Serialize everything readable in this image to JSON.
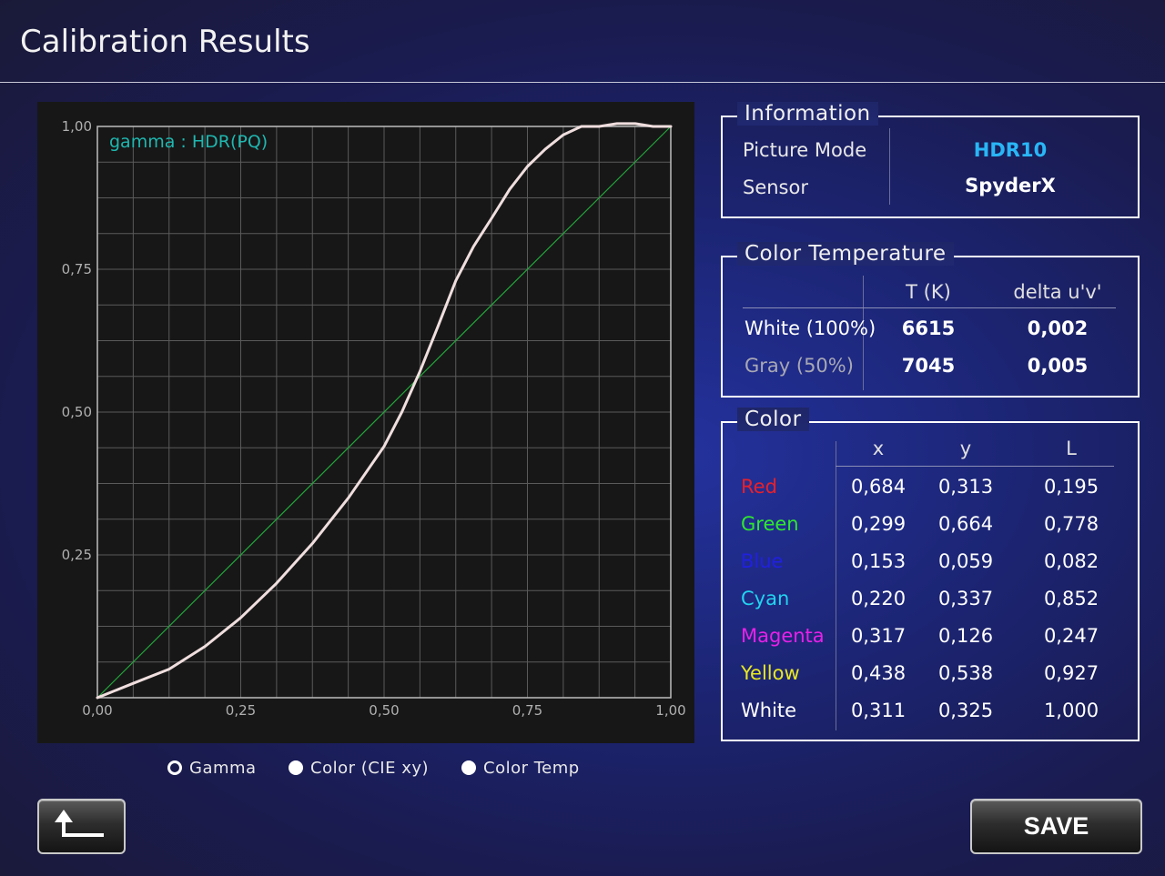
{
  "title": "Calibration Results",
  "chart_data": {
    "type": "line",
    "legend_text": "gamma :  HDR(PQ)",
    "x_ticks": [
      "0,00",
      "0,25",
      "0,50",
      "0,75",
      "1,00"
    ],
    "y_ticks": [
      "1,00",
      "0,75",
      "0,50",
      "0,25"
    ],
    "xlim": [
      0,
      1
    ],
    "ylim": [
      0,
      1
    ],
    "grid": true,
    "series": [
      {
        "color": "#f0dede",
        "x": [
          0,
          0.062,
          0.125,
          0.188,
          0.25,
          0.312,
          0.375,
          0.438,
          0.5,
          0.531,
          0.562,
          0.594,
          0.625,
          0.656,
          0.688,
          0.719,
          0.75,
          0.781,
          0.812,
          0.844,
          0.875,
          0.906,
          0.938,
          0.969,
          1
        ],
        "y": [
          0,
          0.025,
          0.05,
          0.09,
          0.14,
          0.2,
          0.27,
          0.35,
          0.44,
          0.5,
          0.57,
          0.65,
          0.73,
          0.79,
          0.84,
          0.89,
          0.93,
          0.96,
          0.985,
          1.0,
          1.0,
          1.005,
          1.005,
          1.0,
          1.0
        ]
      },
      {
        "color": "#22a63a",
        "x": [
          0,
          1
        ],
        "y": [
          0,
          1
        ]
      }
    ]
  },
  "radios": [
    {
      "label": "Gamma",
      "selected": true
    },
    {
      "label": "Color (CIE xy)",
      "selected": false
    },
    {
      "label": "Color Temp",
      "selected": false
    }
  ],
  "information": {
    "title": "Information",
    "rows": [
      {
        "label": "Picture Mode",
        "value": "HDR10",
        "value_color": "#29b6f6"
      },
      {
        "label": "Sensor",
        "value": "SpyderX",
        "value_color": "#ffffff"
      }
    ]
  },
  "color_temperature": {
    "title": "Color Temperature",
    "headers": [
      "T (K)",
      "delta u'v'"
    ],
    "rows": [
      {
        "label": "White (100%)",
        "label_color": "#ffffff",
        "t": "6615",
        "delta": "0,002"
      },
      {
        "label": "Gray (50%)",
        "label_color": "#a8a8b4",
        "t": "7045",
        "delta": "0,005"
      }
    ]
  },
  "color": {
    "title": "Color",
    "headers": [
      "x",
      "y",
      "L"
    ],
    "rows": [
      {
        "name": "Red",
        "name_color": "#e8202a",
        "x": "0,684",
        "y": "0,313",
        "L": "0,195"
      },
      {
        "name": "Green",
        "name_color": "#2ee82e",
        "x": "0,299",
        "y": "0,664",
        "L": "0,778"
      },
      {
        "name": "Blue",
        "name_color": "#2020e0",
        "x": "0,153",
        "y": "0,059",
        "L": "0,082"
      },
      {
        "name": "Cyan",
        "name_color": "#22d4f0",
        "x": "0,220",
        "y": "0,337",
        "L": "0,852"
      },
      {
        "name": "Magenta",
        "name_color": "#e820e8",
        "x": "0,317",
        "y": "0,126",
        "L": "0,247"
      },
      {
        "name": "Yellow",
        "name_color": "#e8e820",
        "x": "0,438",
        "y": "0,538",
        "L": "0,927"
      },
      {
        "name": "White",
        "name_color": "#ffffff",
        "x": "0,311",
        "y": "0,325",
        "L": "1,000"
      }
    ]
  },
  "buttons": {
    "back_icon": "return-arrow-icon",
    "save_label": "SAVE"
  }
}
